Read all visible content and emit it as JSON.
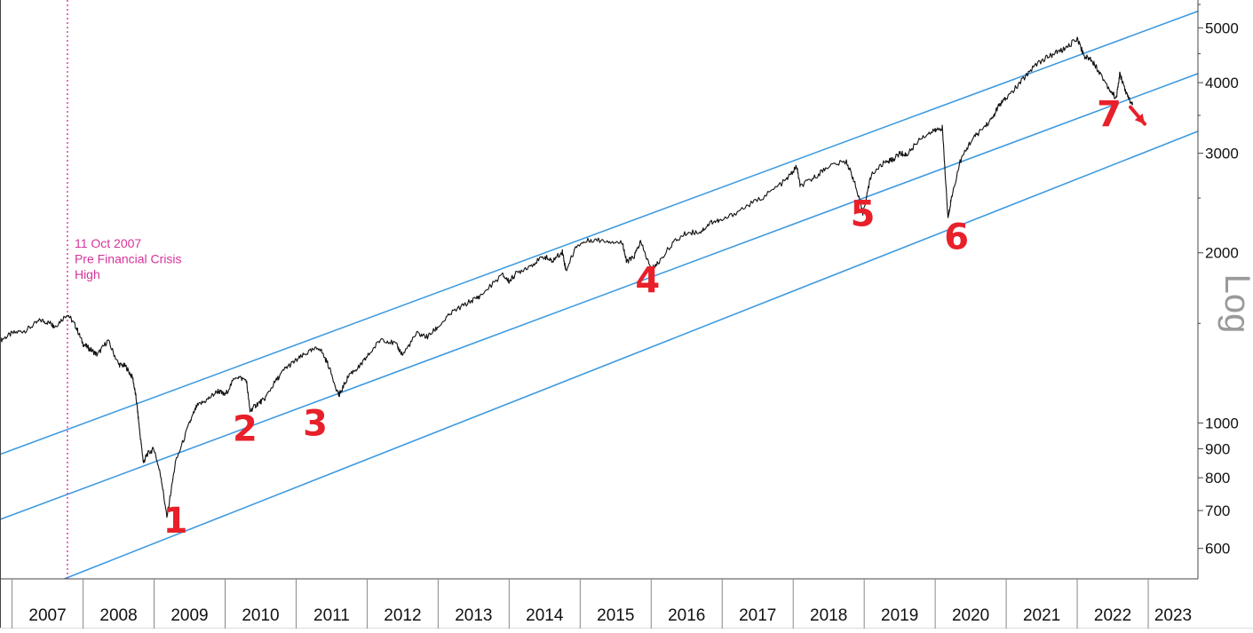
{
  "chart_data": {
    "type": "line",
    "title": "",
    "xlabel": "",
    "ylabel": "",
    "y_scale": "log",
    "y_scale_label": "Log",
    "xlim": [
      2006.83,
      2023.7
    ],
    "ylim": [
      530,
      5600
    ],
    "x_tick_labels": [
      "2007",
      "2008",
      "2009",
      "2010",
      "2011",
      "2012",
      "2013",
      "2014",
      "2015",
      "2016",
      "2017",
      "2018",
      "2019",
      "2020",
      "2021",
      "2022",
      "2023"
    ],
    "y_ticks": [
      {
        "value": 600,
        "label": "600"
      },
      {
        "value": 700,
        "label": "700"
      },
      {
        "value": 800,
        "label": "800"
      },
      {
        "value": 900,
        "label": "900"
      },
      {
        "value": 1000,
        "label": "1000"
      },
      {
        "value": 2000,
        "label": "2000"
      },
      {
        "value": 3000,
        "label": "3000"
      },
      {
        "value": 4000,
        "label": "4000"
      },
      {
        "value": 5000,
        "label": "5000"
      }
    ],
    "grid": false,
    "colors": {
      "price": "#111111",
      "channel": "#3d9ae0",
      "annotation": "#d6339b",
      "marker": "#e8202a",
      "axis": "#444444"
    },
    "series": [
      {
        "name": "",
        "x": [
          2006.83,
          2007.0,
          2007.2,
          2007.4,
          2007.55,
          2007.6,
          2007.78,
          2007.9,
          2008.0,
          2008.1,
          2008.2,
          2008.35,
          2008.5,
          2008.6,
          2008.7,
          2008.75,
          2008.8,
          2008.85,
          2008.9,
          2009.0,
          2009.1,
          2009.18,
          2009.3,
          2009.5,
          2009.6,
          2009.75,
          2009.9,
          2010.0,
          2010.15,
          2010.3,
          2010.35,
          2010.45,
          2010.55,
          2010.7,
          2010.85,
          2011.0,
          2011.15,
          2011.33,
          2011.45,
          2011.6,
          2011.62,
          2011.75,
          2011.9,
          2012.0,
          2012.2,
          2012.4,
          2012.5,
          2012.7,
          2012.85,
          2013.0,
          2013.2,
          2013.45,
          2013.6,
          2013.9,
          2014.0,
          2014.1,
          2014.3,
          2014.5,
          2014.6,
          2014.75,
          2014.8,
          2014.95,
          2015.15,
          2015.4,
          2015.6,
          2015.65,
          2015.75,
          2015.85,
          2016.0,
          2016.1,
          2016.3,
          2016.5,
          2016.7,
          2016.85,
          2017.0,
          2017.3,
          2017.6,
          2017.9,
          2018.05,
          2018.1,
          2018.3,
          2018.5,
          2018.75,
          2018.85,
          2018.98,
          2019.1,
          2019.3,
          2019.4,
          2019.5,
          2019.6,
          2019.8,
          2020.0,
          2020.1,
          2020.18,
          2020.22,
          2020.35,
          2020.5,
          2020.65,
          2020.8,
          2020.9,
          2021.0,
          2021.2,
          2021.4,
          2021.6,
          2021.75,
          2021.85,
          2022.0,
          2022.1,
          2022.2,
          2022.3,
          2022.45,
          2022.55,
          2022.6,
          2022.7,
          2022.78
        ],
        "values": [
          1400,
          1440,
          1460,
          1520,
          1500,
          1480,
          1560,
          1480,
          1380,
          1350,
          1320,
          1400,
          1270,
          1260,
          1200,
          1100,
          960,
          850,
          880,
          900,
          800,
          680,
          850,
          1000,
          1070,
          1100,
          1140,
          1120,
          1210,
          1190,
          1050,
          1080,
          1100,
          1180,
          1250,
          1290,
          1330,
          1360,
          1270,
          1120,
          1130,
          1220,
          1260,
          1310,
          1410,
          1380,
          1320,
          1440,
          1420,
          1480,
          1570,
          1640,
          1680,
          1830,
          1780,
          1840,
          1900,
          1970,
          1930,
          2010,
          1860,
          2060,
          2110,
          2100,
          2080,
          1930,
          1960,
          2090,
          1870,
          1920,
          2080,
          2170,
          2180,
          2270,
          2280,
          2400,
          2520,
          2690,
          2840,
          2620,
          2720,
          2850,
          2900,
          2700,
          2350,
          2750,
          2900,
          2920,
          3000,
          2980,
          3200,
          3290,
          3330,
          2300,
          2470,
          2900,
          3150,
          3300,
          3450,
          3650,
          3750,
          4000,
          4300,
          4450,
          4550,
          4600,
          4800,
          4450,
          4400,
          4200,
          3900,
          3750,
          4150,
          3800,
          3650
        ]
      }
    ],
    "channel_lines": [
      {
        "x": [
          2006.83,
          2023.7
        ],
        "values": [
          880,
          5350
        ]
      },
      {
        "x": [
          2006.83,
          2023.7
        ],
        "values": [
          675,
          4150
        ]
      },
      {
        "x": [
          2006.83,
          2023.7
        ],
        "values": [
          478,
          3280
        ]
      }
    ],
    "vertical_marker": {
      "x": 2007.78,
      "label_lines": [
        "11 Oct 2007",
        "Pre Financial Crisis",
        "High"
      ]
    },
    "markers": [
      {
        "label": "1",
        "x": 2009.3,
        "y": 640
      },
      {
        "label": "2",
        "x": 2010.28,
        "y": 930
      },
      {
        "label": "3",
        "x": 2011.27,
        "y": 950
      },
      {
        "label": "4",
        "x": 2015.95,
        "y": 1700
      },
      {
        "label": "5",
        "x": 2018.98,
        "y": 2230
      },
      {
        "label": "6",
        "x": 2020.3,
        "y": 2030
      },
      {
        "label": "7",
        "x": 2022.45,
        "y": 3350
      }
    ],
    "trend_arrow": {
      "x": [
        2022.75,
        2022.95
      ],
      "values": [
        3620,
        3380
      ]
    }
  }
}
